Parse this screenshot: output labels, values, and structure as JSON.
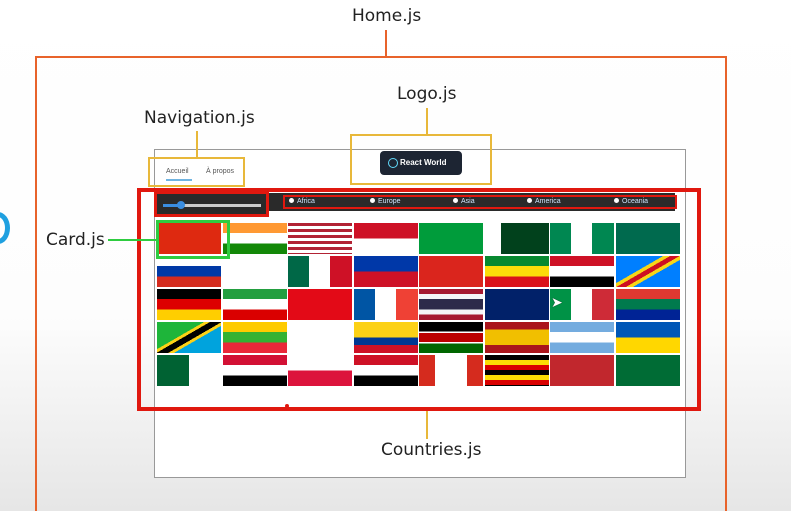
{
  "labels": {
    "home": "Home.js",
    "logo": "Logo.js",
    "navigation": "Navigation.js",
    "card": "Card.js",
    "countries": "Countries.js"
  },
  "nav": {
    "items": [
      "Accueil",
      "À propos"
    ]
  },
  "logo": {
    "text": "React World"
  },
  "filters": {
    "regions": [
      "Africa",
      "Europe",
      "Asia",
      "America",
      "Oceania"
    ]
  },
  "colors": {
    "home_box": "#e8632b",
    "yellow_box": "#e8b83a",
    "red_box": "#e0180f",
    "green_box": "#2ecc40"
  },
  "flags": [
    "china",
    "india",
    "usa",
    "indonesia",
    "brazil",
    "pakistan",
    "nigeria",
    "bangladesh",
    "russia",
    "japan",
    "mexico",
    "philippines",
    "vietnam",
    "ethiopia",
    "egypt",
    "dr-congo",
    "germany",
    "iran",
    "turkey",
    "france",
    "thailand",
    "uk",
    "italy",
    "south-africa",
    "tanzania",
    "myanmar",
    "south-korea",
    "colombia",
    "kenya",
    "spain",
    "argentina",
    "ukraine",
    "algeria",
    "sudan",
    "poland",
    "iraq",
    "canada",
    "uganda",
    "morocco",
    "saudi-arabia"
  ]
}
